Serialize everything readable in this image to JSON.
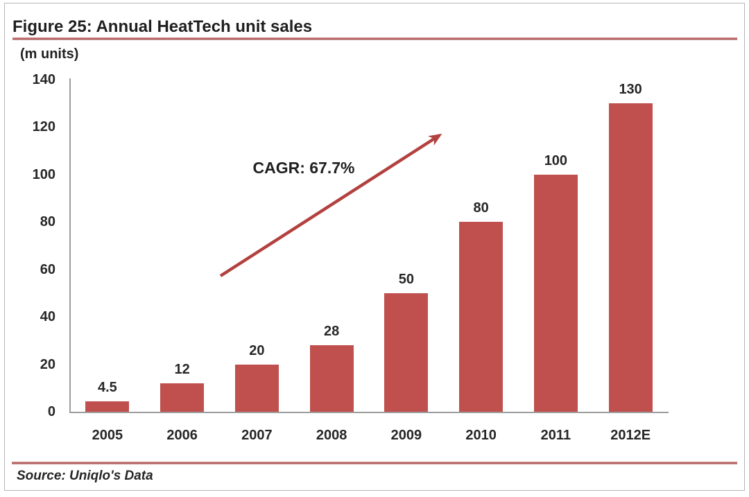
{
  "figure": {
    "title": "Figure 25: Annual HeatTech unit sales",
    "units_label": "(m units)",
    "annotation": "CAGR: 67.7%",
    "source": "Source: Uniqlo's Data"
  },
  "chart_data": {
    "type": "bar",
    "title": "Figure 25: Annual HeatTech unit sales",
    "categories": [
      "2005",
      "2006",
      "2007",
      "2008",
      "2009",
      "2010",
      "2011",
      "2012E"
    ],
    "values": [
      4.5,
      12,
      20,
      28,
      50,
      80,
      100,
      130
    ],
    "data_labels": [
      "4.5",
      "12",
      "20",
      "28",
      "50",
      "80",
      "100",
      "130"
    ],
    "ylabel": "(m units)",
    "xlabel": "",
    "ylim": [
      0,
      140
    ],
    "yticks": [
      0,
      20,
      40,
      60,
      80,
      100,
      120,
      140
    ],
    "grid": false,
    "legend": false,
    "annotation": {
      "text": "CAGR: 67.7%",
      "style": "diagonal-arrow-up-right"
    },
    "source": "Source: Uniqlo's Data"
  },
  "colors": {
    "bar": "#c0504d",
    "arrow": "#b2413f",
    "rule": "#b96966",
    "axis": "#9b9b9b",
    "text": "#262626"
  }
}
